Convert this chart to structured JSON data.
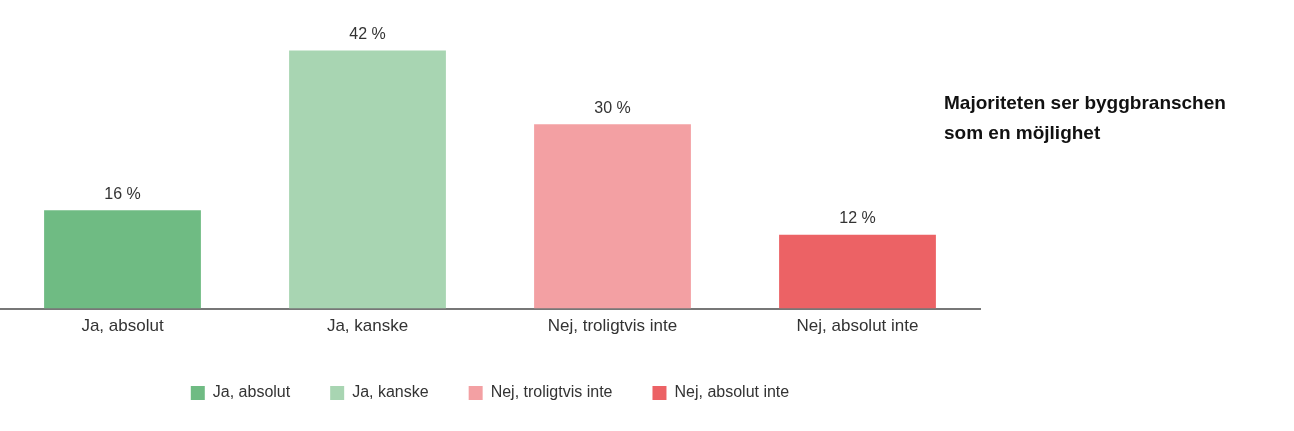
{
  "chart_data": {
    "type": "bar",
    "title": "Majoriteten ser byggbranschen som en möjlighet",
    "categories": [
      "Ja, absolut",
      "Ja, kanske",
      "Nej, troligtvis inte",
      "Nej, absolut inte"
    ],
    "series": [
      {
        "name": "Ja, absolut",
        "color": "#6fbb83",
        "values": [
          16,
          null,
          null,
          null
        ],
        "value_labels": [
          "16 %",
          null,
          null,
          null
        ]
      },
      {
        "name": "Ja, kanske",
        "color": "#a8d5b2",
        "values": [
          null,
          42,
          null,
          null
        ],
        "value_labels": [
          null,
          "42 %",
          null,
          null
        ]
      },
      {
        "name": "Nej, troligtvis inte",
        "color": "#f3a0a3",
        "values": [
          null,
          null,
          30,
          null
        ],
        "value_labels": [
          null,
          null,
          "30 %",
          null
        ]
      },
      {
        "name": "Nej, absolut inte",
        "color": "#ec6265",
        "values": [
          null,
          null,
          null,
          12
        ],
        "value_labels": [
          null,
          null,
          null,
          "12 %"
        ]
      }
    ],
    "tick_labels": "x",
    "legend": "bottom"
  }
}
